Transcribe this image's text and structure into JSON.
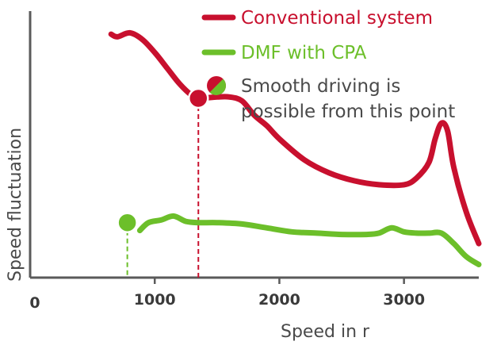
{
  "chart_data": {
    "type": "line",
    "xlabel": "Speed in r",
    "ylabel": "Speed fluctuation",
    "xlim": [
      0,
      3600
    ],
    "ylim": [
      0,
      100
    ],
    "x_ticks": [
      "0",
      "1000",
      "2000",
      "3000"
    ],
    "grid": false,
    "legend_position": "top-right",
    "series": [
      {
        "name": "Conventional system",
        "color": "#c8102e",
        "points": [
          [
            650,
            93
          ],
          [
            700,
            92
          ],
          [
            800,
            93.5
          ],
          [
            900,
            91
          ],
          [
            1000,
            86
          ],
          [
            1100,
            80
          ],
          [
            1200,
            74
          ],
          [
            1300,
            69.5
          ],
          [
            1350,
            68.5
          ],
          [
            1500,
            69
          ],
          [
            1600,
            69
          ],
          [
            1700,
            67.5
          ],
          [
            1800,
            62
          ],
          [
            1900,
            58
          ],
          [
            2000,
            53
          ],
          [
            2200,
            45
          ],
          [
            2400,
            40
          ],
          [
            2600,
            37
          ],
          [
            2800,
            35.5
          ],
          [
            3000,
            35.5
          ],
          [
            3100,
            38
          ],
          [
            3200,
            44
          ],
          [
            3250,
            53
          ],
          [
            3300,
            59
          ],
          [
            3350,
            56
          ],
          [
            3400,
            42
          ],
          [
            3500,
            25
          ],
          [
            3600,
            13
          ]
        ]
      },
      {
        "name": "DMF with CPA",
        "color": "#6cbf2a",
        "points": [
          [
            880,
            18
          ],
          [
            950,
            21
          ],
          [
            1050,
            22
          ],
          [
            1150,
            23.5
          ],
          [
            1250,
            21.5
          ],
          [
            1350,
            21
          ],
          [
            1500,
            21
          ],
          [
            1700,
            20.5
          ],
          [
            1900,
            19
          ],
          [
            2100,
            17.5
          ],
          [
            2300,
            17
          ],
          [
            2500,
            16.5
          ],
          [
            2700,
            16.5
          ],
          [
            2800,
            17
          ],
          [
            2900,
            19
          ],
          [
            3000,
            17.5
          ],
          [
            3100,
            17
          ],
          [
            3200,
            17
          ],
          [
            3300,
            17
          ],
          [
            3400,
            13
          ],
          [
            3500,
            8
          ],
          [
            3600,
            5
          ]
        ]
      }
    ],
    "markers": [
      {
        "x": 1350,
        "y": 68.5,
        "color": "#c8102e",
        "drop_line": true
      },
      {
        "x": 780,
        "y": 21,
        "color": "#6cbf2a",
        "drop_line": true
      }
    ],
    "legend": {
      "items": [
        {
          "label": "Conventional system",
          "color": "#c8102e",
          "kind": "line"
        },
        {
          "label": "DMF with CPA",
          "color": "#6cbf2a",
          "kind": "line"
        },
        {
          "label_lines": [
            "Smooth driving is",
            "possible from this point"
          ],
          "colors": [
            "#c8102e",
            "#6cbf2a"
          ],
          "text_color": "#4a4a4a",
          "kind": "split-dot"
        }
      ]
    }
  }
}
